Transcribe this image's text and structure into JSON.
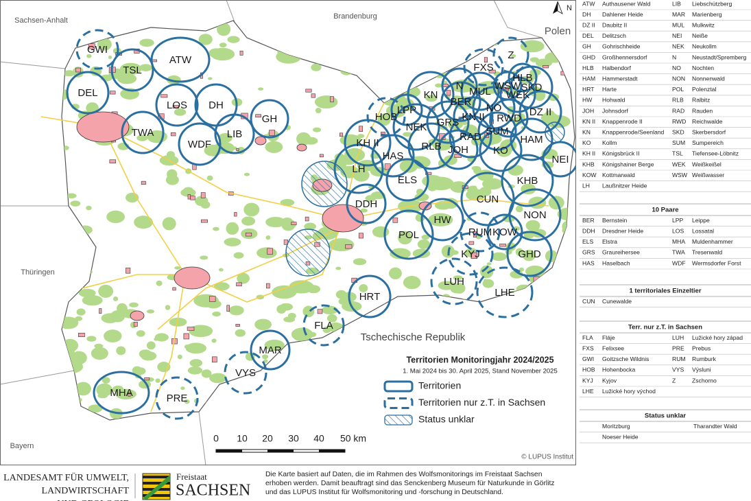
{
  "map": {
    "neighbors": [
      "Sachsen-Anhalt",
      "Brandenburg",
      "Polen",
      "Thüringen",
      "Bayern",
      "Tschechische Republik"
    ],
    "north": "N",
    "territories": [
      {
        "label": "GWI",
        "kind": "partial"
      },
      {
        "label": "TSL",
        "kind": "full"
      },
      {
        "label": "ATW",
        "kind": "full"
      },
      {
        "label": "DEL",
        "kind": "full"
      },
      {
        "label": "LOS",
        "kind": "full"
      },
      {
        "label": "DH",
        "kind": "full"
      },
      {
        "label": "GH",
        "kind": "full"
      },
      {
        "label": "TWA",
        "kind": "full"
      },
      {
        "label": "LIB",
        "kind": "full"
      },
      {
        "label": "WDF",
        "kind": "full"
      },
      {
        "label": "HOB",
        "kind": "partial"
      },
      {
        "label": "LPP",
        "kind": "full"
      },
      {
        "label": "KN",
        "kind": "full"
      },
      {
        "label": "FXS",
        "kind": "partial"
      },
      {
        "label": "Z",
        "kind": "partial"
      },
      {
        "label": "HLB",
        "kind": "full"
      },
      {
        "label": "WSW",
        "kind": "full"
      },
      {
        "label": "N",
        "kind": "full"
      },
      {
        "label": "MUL",
        "kind": "full"
      },
      {
        "label": "SKD",
        "kind": "full"
      },
      {
        "label": "WEK",
        "kind": "full"
      },
      {
        "label": "BER",
        "kind": "full"
      },
      {
        "label": "NO",
        "kind": "full"
      },
      {
        "label": "DZ II",
        "kind": "full"
      },
      {
        "label": "NEK",
        "kind": "full"
      },
      {
        "label": "GRS",
        "kind": "full"
      },
      {
        "label": "KN II",
        "kind": "full"
      },
      {
        "label": "RWD",
        "kind": "full"
      },
      {
        "label": "SUM",
        "kind": "full"
      },
      {
        "label": "RAD",
        "kind": "full"
      },
      {
        "label": "HAM",
        "kind": "full"
      },
      {
        "label": "KH II",
        "kind": "full"
      },
      {
        "label": "RLB",
        "kind": "full"
      },
      {
        "label": "JOH",
        "kind": "full"
      },
      {
        "label": "KO",
        "kind": "full"
      },
      {
        "label": "NEI",
        "kind": "full"
      },
      {
        "label": "HAS",
        "kind": "full"
      },
      {
        "label": "LH",
        "kind": "full"
      },
      {
        "label": "KHB",
        "kind": "full"
      },
      {
        "label": "ELS",
        "kind": "full"
      },
      {
        "label": "DDH",
        "kind": "full"
      },
      {
        "label": "CUN",
        "kind": "full"
      },
      {
        "label": "NON",
        "kind": "full"
      },
      {
        "label": "HW",
        "kind": "full"
      },
      {
        "label": "POL",
        "kind": "full"
      },
      {
        "label": "RUM",
        "kind": "partial"
      },
      {
        "label": "KOW",
        "kind": "full"
      },
      {
        "label": "KYJ",
        "kind": "partial"
      },
      {
        "label": "GHD",
        "kind": "full"
      },
      {
        "label": "LUH",
        "kind": "partial"
      },
      {
        "label": "LHE",
        "kind": "partial"
      },
      {
        "label": "HRT",
        "kind": "full"
      },
      {
        "label": "FLA",
        "kind": "partial"
      },
      {
        "label": "MAR",
        "kind": "full"
      },
      {
        "label": "VYS",
        "kind": "partial"
      },
      {
        "label": "MHA",
        "kind": "full"
      },
      {
        "label": "PRE",
        "kind": "partial"
      }
    ],
    "scale_labels": [
      "0",
      "10",
      "20",
      "30",
      "40",
      "50 km"
    ],
    "credit": "© LUPUS Institut"
  },
  "legend": {
    "title": "Territorien Monitoringjahr 2024/2025",
    "subtitle": "1. Mai 2024 bis 30. April 2025, Stand November 2025",
    "items": [
      "Territorien",
      "Territorien nur z.T. in Sachsen",
      "Status unklar"
    ]
  },
  "table": {
    "sections": [
      {
        "columns": "pairs",
        "rows": [
          [
            "ATW",
            "Authausener Wald",
            "LIB",
            "Liebschützberg"
          ],
          [
            "DH",
            "Dahlener Heide",
            "MAR",
            "Marienberg"
          ],
          [
            "DZ II",
            "Daubitz II",
            "MUL",
            "Mulkwitz"
          ],
          [
            "DEL",
            "Delitzsch",
            "NEI",
            "Neiße"
          ],
          [
            "GH",
            "Gohrischheide",
            "NEK",
            "Neukollm"
          ],
          [
            "GHD",
            "Großhennersdorf",
            "N",
            "Neustadt/Spremberg"
          ],
          [
            "HLB",
            "Halbendorf",
            "NO",
            "Nochten"
          ],
          [
            "HAM",
            "Hammerstadt",
            "NON",
            "Nonnenwald"
          ],
          [
            "HRT",
            "Harte",
            "POL",
            "Polenztal"
          ],
          [
            "HW",
            "Hohwald",
            "RLB",
            "Ralbitz"
          ],
          [
            "JOH",
            "Johnsdorf",
            "RAD",
            "Rauden"
          ],
          [
            "KN II",
            "Knappenrode II",
            "RWD",
            "Reichwalde"
          ],
          [
            "KN",
            "Knappenrode/Seenland",
            "SKD",
            "Skerbersdorf"
          ],
          [
            "KO",
            "Kollm",
            "SUM",
            "Sumpereich"
          ],
          [
            "KH II",
            "Königsbrück II",
            "TSL",
            "Tiefensee-Löbnitz"
          ],
          [
            "KHB",
            "Königshainer Berge",
            "WEK",
            "Weißkeißel"
          ],
          [
            "KOW",
            "Kottmarwald",
            "WSW",
            "Weißwasser"
          ],
          [
            "LH",
            "Laußnitzer Heide"
          ]
        ]
      },
      {
        "heading": "10 Paare",
        "columns": "pairs",
        "rows": [
          [
            "BER",
            "Bernstein",
            "LPP",
            "Leippe"
          ],
          [
            "DDH",
            "Dresdner Heide",
            "LOS",
            "Lossatal"
          ],
          [
            "ELS",
            "Elstra",
            "MHA",
            "Muldenhammer"
          ],
          [
            "GRS",
            "Graureihersee",
            "TWA",
            "Tresenwald"
          ],
          [
            "HAS",
            "Haselbach",
            "WDF",
            "Wermsdorfer Forst"
          ]
        ]
      },
      {
        "heading": "1 territoriales Einzeltier",
        "columns": "pairs",
        "rows": [
          [
            "CUN",
            "Cunewalde"
          ]
        ]
      },
      {
        "heading": "Terr. nur z.T. in Sachsen",
        "columns": "pairs",
        "rows": [
          [
            "FLA",
            "Fláje",
            "LUH",
            "Lužické hory západ"
          ],
          [
            "FXS",
            "Felixsee",
            "PRE",
            "Prebus"
          ],
          [
            "GWI",
            "Goitzsche Wildnis",
            "RUM",
            "Rumburk"
          ],
          [
            "HOB",
            "Hohenbocka",
            "VYS",
            "Výsluni"
          ],
          [
            "KYJ",
            "Kyjov",
            "Z",
            "Zschorno"
          ],
          [
            "LHE",
            "Lužické hory východ"
          ]
        ]
      },
      {
        "heading": "Status unklar",
        "columns": "names",
        "rows": [
          [
            "Moritzburg",
            "Tharandter Wald"
          ],
          [
            "Noeser Heide"
          ]
        ]
      }
    ]
  },
  "footer": {
    "agency": [
      "LANDESAMT FÜR UMWELT,",
      "LANDWIRTSCHAFT",
      "UND GEOLOGIE"
    ],
    "state_small": "Freistaat",
    "state": "SACHSEN",
    "note": [
      "Die Karte basiert auf Daten, die im Rahmen des Wolfsmonitorings im Freistaat Sachsen",
      "erhoben werden. Damit beauftragt sind das Senckenberg Museum für Naturkunde in Görlitz",
      "und das LUPUS Institut für Wolfsmonitoring und -forschung in Deutschland."
    ]
  }
}
